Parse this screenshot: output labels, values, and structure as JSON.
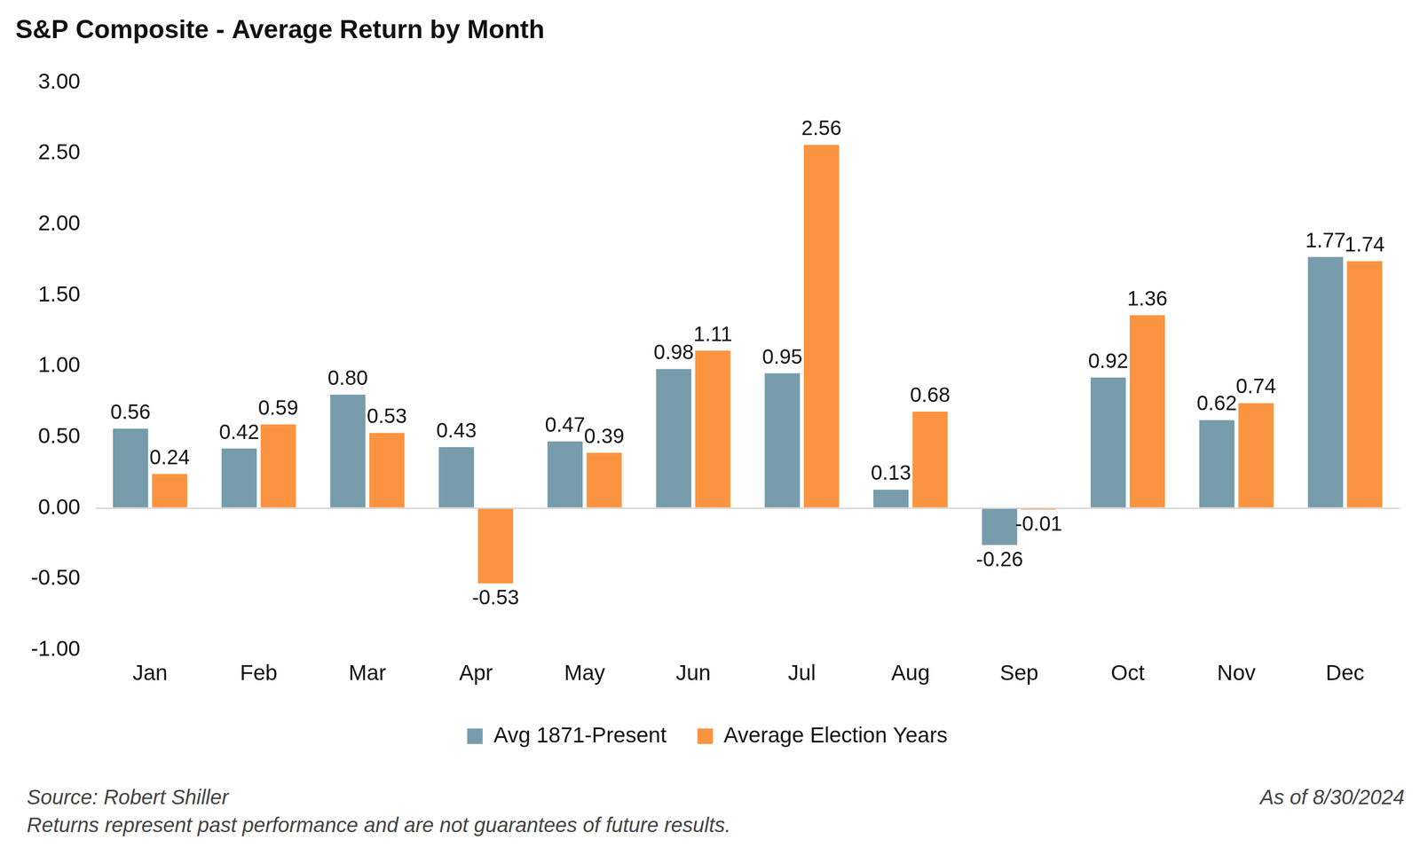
{
  "chart_data": {
    "type": "bar",
    "title": "S&P Composite - Average Return by Month",
    "categories": [
      "Jan",
      "Feb",
      "Mar",
      "Apr",
      "May",
      "Jun",
      "Jul",
      "Aug",
      "Sep",
      "Oct",
      "Nov",
      "Dec"
    ],
    "series": [
      {
        "name": "Avg 1871-Present",
        "color": "#779cac",
        "values": [
          0.56,
          0.42,
          0.8,
          0.43,
          0.47,
          0.98,
          0.95,
          0.13,
          -0.26,
          0.92,
          0.62,
          1.77
        ],
        "value_labels": [
          "0.56",
          "0.42",
          "0.80",
          "0.43",
          "0.47",
          "0.98",
          "0.95",
          "0.13",
          "-0.26",
          "0.92",
          "0.62",
          "1.77"
        ]
      },
      {
        "name": "Average Election Years",
        "color": "#fb9440",
        "values": [
          0.24,
          0.59,
          0.53,
          -0.53,
          0.39,
          1.11,
          2.56,
          0.68,
          -0.01,
          1.36,
          0.74,
          1.74
        ],
        "value_labels": [
          "0.24",
          "0.59",
          "0.53",
          "-0.53",
          "0.39",
          "1.11",
          "2.56",
          "0.68",
          "-0.01",
          "1.36",
          "0.74",
          "1.74"
        ]
      }
    ],
    "ylim": [
      -1,
      3
    ],
    "yticks": [
      {
        "value": -1,
        "label": "-1.00"
      },
      {
        "value": -0.5,
        "label": "-0.50"
      },
      {
        "value": 0,
        "label": "0.00"
      },
      {
        "value": 0.5,
        "label": "0.50"
      },
      {
        "value": 1,
        "label": "1.00"
      },
      {
        "value": 1.5,
        "label": "1.50"
      },
      {
        "value": 2,
        "label": "2.00"
      },
      {
        "value": 2.5,
        "label": "2.50"
      },
      {
        "value": 3,
        "label": "3.00"
      }
    ],
    "grid": false,
    "legend": "bottom",
    "data_labels": true,
    "source": "Source: Robert Shiller",
    "footnote": "Returns represent past performance and are not guarantees of future results.",
    "as_of": "As of 8/30/2024"
  }
}
